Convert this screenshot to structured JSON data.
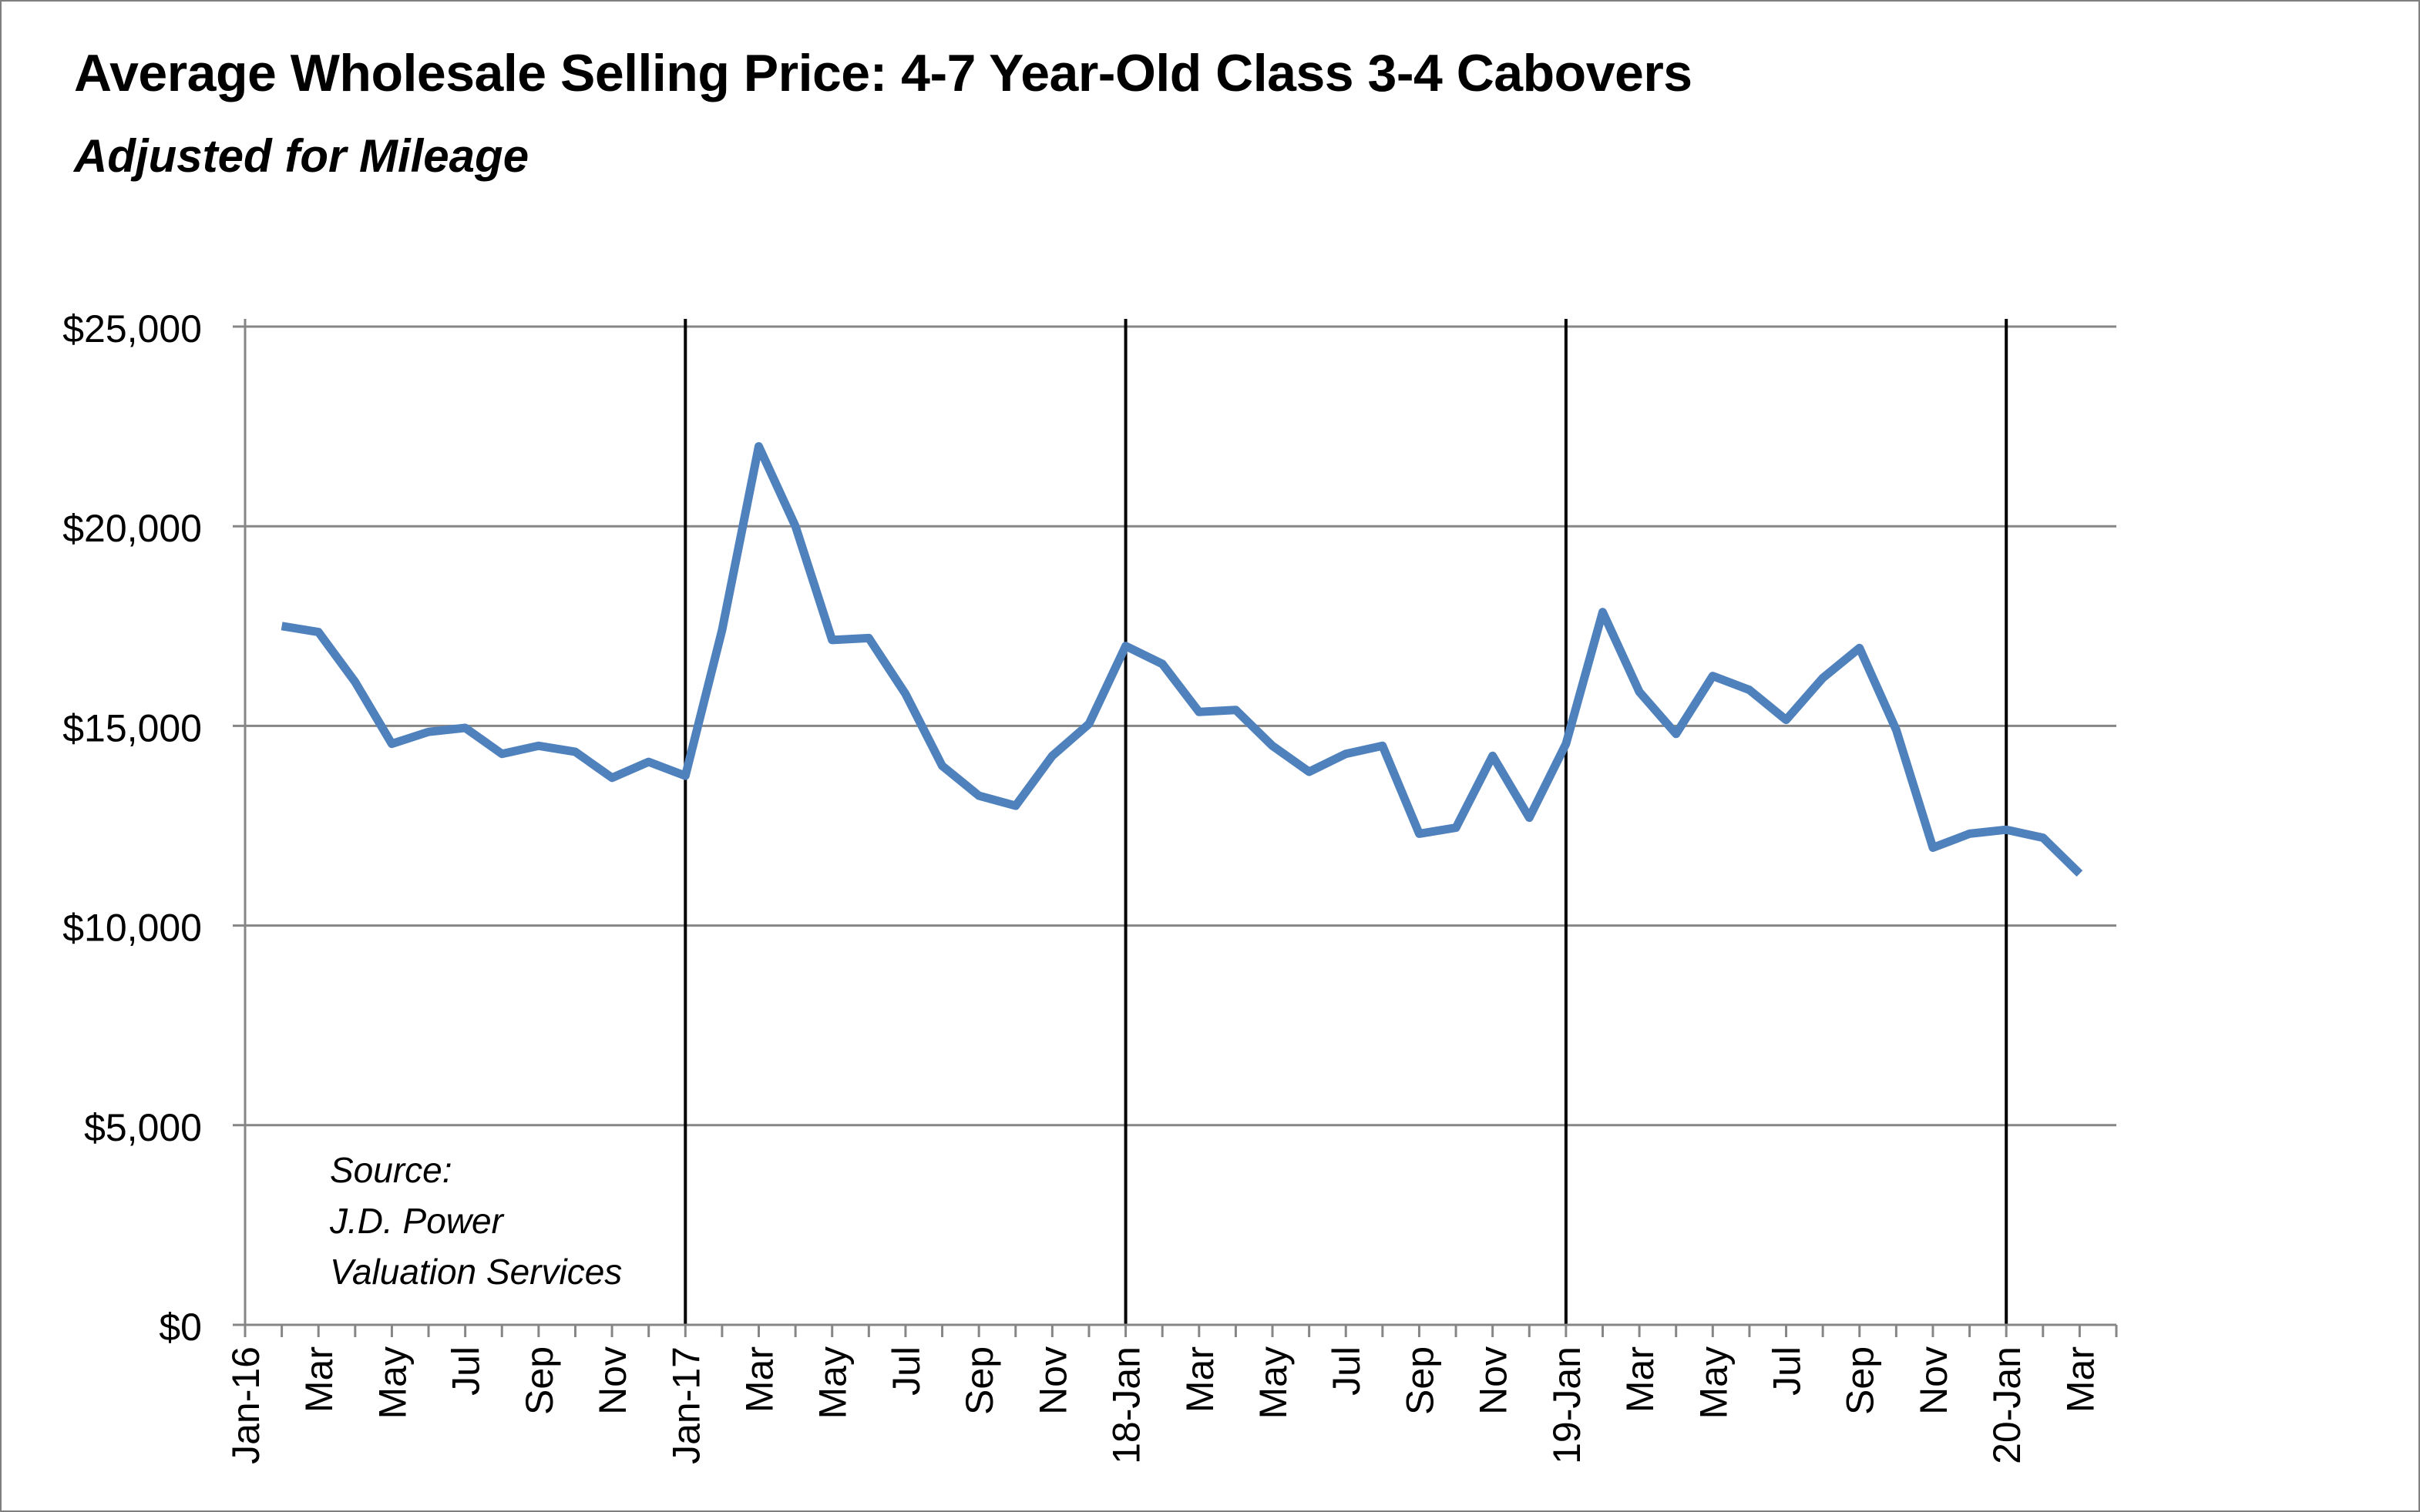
{
  "chart_data": {
    "type": "line",
    "title": "Average Wholesale Selling Price: 4-7 Year-Old Class 3-4 Cabovers",
    "subtitle": "Adjusted for Mileage",
    "xlabel": "",
    "ylabel": "",
    "ylim": [
      0,
      25000
    ],
    "yticks": [
      0,
      5000,
      10000,
      15000,
      20000,
      25000
    ],
    "ytick_labels": [
      "$0",
      "$5,000",
      "$10,000",
      "$15,000",
      "$20,000",
      "$25,000"
    ],
    "xtick_labels": [
      "Jan-16",
      "Mar",
      "May",
      "Jul",
      "Sep",
      "Nov",
      "Jan-17",
      "Mar",
      "May",
      "Jul",
      "Sep",
      "Nov",
      "18-Jan",
      "Mar",
      "May",
      "Jul",
      "Sep",
      "Nov",
      "19-Jan",
      "Mar",
      "May",
      "Jul",
      "Sep",
      "Nov",
      "20-Jan",
      "Mar"
    ],
    "year_dividers_at_month_index": [
      12,
      24,
      36,
      48
    ],
    "grid": true,
    "series": [
      {
        "name": "Average Wholesale Selling Price",
        "color": "#4f81bd",
        "values": [
          17500,
          17350,
          16100,
          14550,
          14850,
          14950,
          14300,
          14500,
          14350,
          13700,
          14100,
          13750,
          17400,
          22000,
          20000,
          17150,
          17200,
          15800,
          14000,
          13250,
          13000,
          14250,
          15050,
          17000,
          16550,
          15350,
          15400,
          14500,
          13850,
          14300,
          14500,
          12300,
          12450,
          14250,
          12700,
          14550,
          17850,
          15850,
          14800,
          16250,
          15900,
          15150,
          16200,
          16950,
          14900,
          11950,
          12300,
          12400,
          12200,
          11300
        ]
      }
    ],
    "annotation": [
      "Source:",
      "J.D. Power",
      "Valuation Services"
    ]
  }
}
